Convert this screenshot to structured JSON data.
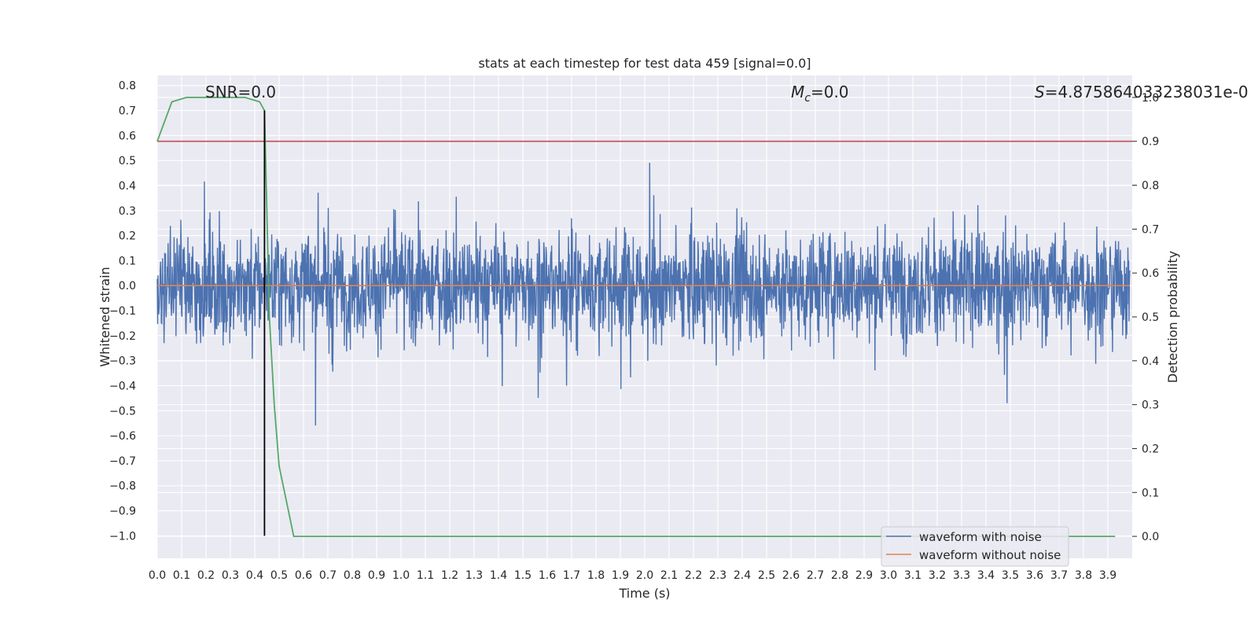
{
  "chart_data": {
    "type": "line",
    "title": "stats at each timestep for test data 459 [signal=0.0]",
    "xlabel": "Time (s)",
    "ylabel": "Whitened strain",
    "y2label": "Detection probability",
    "xlim": [
      0.0,
      4.0
    ],
    "ylim": [
      -1.09,
      0.84
    ],
    "y2lim": [
      -0.05,
      1.05
    ],
    "xticks": [
      "0.0",
      "0.1",
      "0.2",
      "0.3",
      "0.4",
      "0.5",
      "0.6",
      "0.7",
      "0.8",
      "0.9",
      "1.0",
      "1.1",
      "1.2",
      "1.3",
      "1.4",
      "1.5",
      "1.6",
      "1.7",
      "1.8",
      "1.9",
      "2.0",
      "2.1",
      "2.2",
      "2.3",
      "2.4",
      "2.5",
      "2.6",
      "2.7",
      "2.8",
      "2.9",
      "3.0",
      "3.1",
      "3.2",
      "3.3",
      "3.4",
      "3.5",
      "3.6",
      "3.7",
      "3.8",
      "3.9"
    ],
    "yticks": [
      "0.8",
      "0.7",
      "0.6",
      "0.5",
      "0.4",
      "0.3",
      "0.2",
      "0.1",
      "0.0",
      "-0.1",
      "-0.2",
      "-0.3",
      "-0.4",
      "-0.5",
      "-0.6",
      "-0.7",
      "-0.8",
      "-0.9",
      "-1.0"
    ],
    "y2ticks": [
      "1.0",
      "0.9",
      "0.8",
      "0.7",
      "0.6",
      "0.5",
      "0.4",
      "0.3",
      "0.2",
      "0.1",
      "0.0"
    ],
    "grid": true,
    "legend_position": "lower-right",
    "annotations": {
      "snr": "SNR=0.0",
      "mc_symbol": "M",
      "mc_subscript": "c",
      "mc_value": "=0.0",
      "s_symbol": "S",
      "s_value": "=4.875864033238031e-0"
    },
    "series": [
      {
        "name": "waveform with noise",
        "color": "#4c72b0",
        "axis": "left",
        "description_range": [
          -1.0,
          0.76
        ],
        "noise_std": 0.21,
        "x_range": [
          0.0,
          3.99
        ]
      },
      {
        "name": "waveform without noise",
        "color": "#dd8452",
        "axis": "left",
        "x": [
          0.0,
          3.99
        ],
        "y": [
          0.0,
          0.0
        ]
      },
      {
        "name": "detection probability",
        "color": "#55a868",
        "axis": "right",
        "x": [
          0.0,
          0.06,
          0.12,
          0.18,
          0.24,
          0.3,
          0.36,
          0.42,
          0.44,
          0.46,
          0.48,
          0.5,
          0.56,
          0.62,
          1.0,
          2.0,
          3.0,
          3.93
        ],
        "y": [
          0.9,
          0.99,
          1.0,
          1.0,
          1.0,
          1.0,
          1.0,
          0.99,
          0.97,
          0.5,
          0.3,
          0.16,
          0.0,
          0.0,
          0.0,
          0.0,
          0.0,
          0.0
        ]
      }
    ],
    "threshold": {
      "value": 0.9,
      "axis": "right",
      "color": "#c44e52"
    },
    "marker_line": {
      "x": 0.44,
      "y_from": -1.0,
      "y_to": 0.7,
      "color": "#000000"
    }
  }
}
